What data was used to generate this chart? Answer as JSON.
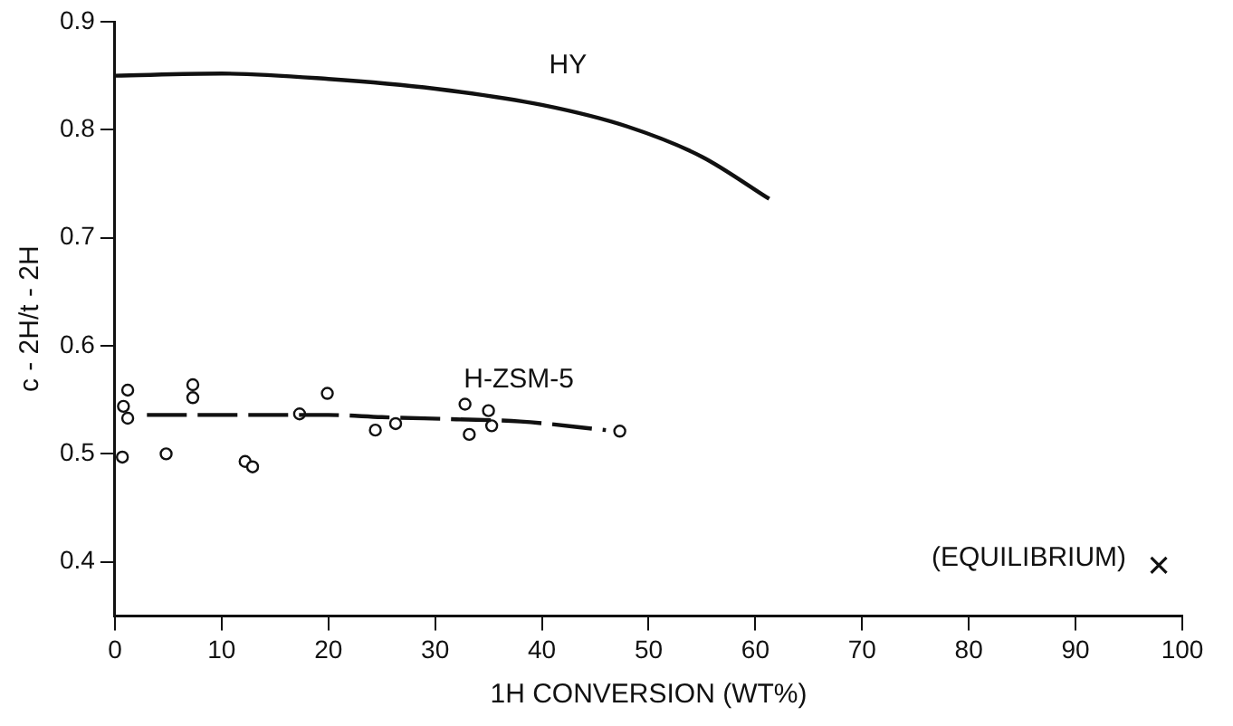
{
  "chart_data": {
    "type": "scatter",
    "xlabel": "1H CONVERSION (WT%)",
    "ylabel": "c - 2H/t - 2H",
    "xlim": [
      0,
      100
    ],
    "xticks": [
      0,
      10,
      20,
      30,
      40,
      50,
      60,
      70,
      80,
      90,
      100
    ],
    "ylim": [
      0.35,
      0.9
    ],
    "yticks": [
      0.4,
      0.5,
      0.6,
      0.7,
      0.8,
      0.9
    ],
    "grid": false,
    "legend": false,
    "series": [
      {
        "name": "HY",
        "type": "line",
        "color": "#111111",
        "marker": "none",
        "line_style": "solid",
        "x": [
          0,
          10,
          20,
          30,
          40,
          48,
          55,
          61.3
        ],
        "values": [
          0.85,
          0.852,
          0.847,
          0.838,
          0.823,
          0.803,
          0.775,
          0.736
        ]
      },
      {
        "name": "H-ZSM-5",
        "type": "line",
        "color": "#111111",
        "marker": "none",
        "line_style": "dashed",
        "x": [
          3,
          15,
          20,
          25,
          32,
          38,
          46
        ],
        "values": [
          0.536,
          0.536,
          0.536,
          0.534,
          0.532,
          0.53,
          0.522
        ]
      },
      {
        "type": "scatter",
        "color": "#111111",
        "marker": "circle",
        "x": [
          0.7,
          0.8,
          1.2,
          1.2,
          4.8,
          7.3,
          7.3,
          12.2,
          12.9,
          17.3,
          19.9,
          24.4,
          26.3,
          32.8,
          33.2,
          35,
          35.3,
          47.3
        ],
        "values": [
          0.497,
          0.544,
          0.559,
          0.533,
          0.5,
          0.564,
          0.552,
          0.493,
          0.488,
          0.537,
          0.556,
          0.522,
          0.528,
          0.546,
          0.518,
          0.54,
          0.526,
          0.521
        ]
      },
      {
        "name": "(EQUILIBRIUM)",
        "type": "scatter",
        "color": "#111111",
        "marker": "cross",
        "x": [
          97.8
        ],
        "values": [
          0.397
        ]
      }
    ]
  }
}
